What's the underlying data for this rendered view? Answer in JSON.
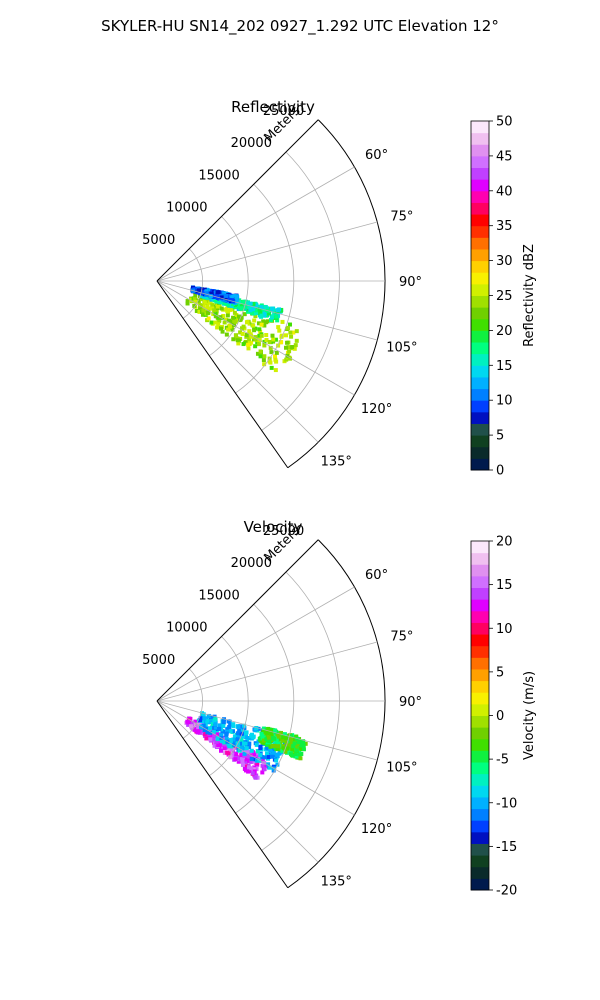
{
  "figure_title": "SKYLER-HU  SN14_202  0927_1.292 UTC Elevation 12°",
  "chart_data": [
    {
      "type": "polar-sector-radar",
      "title": "Reflectivity",
      "radial_label": "Meters",
      "rlim": [
        0,
        25000
      ],
      "r_ticks": [
        5000,
        10000,
        15000,
        20000,
        25000
      ],
      "r_tick_labels": [
        "5000",
        "10000",
        "15000",
        "20000",
        "25000"
      ],
      "theta_range_deg": [
        45,
        145
      ],
      "theta_ticks": [
        60,
        75,
        90,
        105,
        120,
        135
      ],
      "theta_tick_labels": [
        "60°",
        "75°",
        "90°",
        "105°",
        "120°",
        "135°"
      ],
      "grid": true,
      "colorbar": {
        "label": "Reflectivity dBZ",
        "vmin": 0,
        "vmax": 50,
        "ticks": [
          0,
          5,
          10,
          15,
          20,
          25,
          30,
          35,
          40,
          45,
          50
        ],
        "tick_labels": [
          "0",
          "5",
          "10",
          "15",
          "20",
          "25",
          "30",
          "35",
          "40",
          "45",
          "50"
        ],
        "colors": [
          "#001a4d",
          "#0a2a2a",
          "#104020",
          "#20504a",
          "#0010c0",
          "#0040ff",
          "#0080ff",
          "#00b0ff",
          "#00d8f0",
          "#00f0c0",
          "#00ff80",
          "#10f040",
          "#40e000",
          "#70d000",
          "#a0e000",
          "#d0f000",
          "#f8f000",
          "#ffd000",
          "#ffa000",
          "#ff7000",
          "#ff3000",
          "#ff0000",
          "#ff0060",
          "#ff00b0",
          "#e000ff",
          "#c040ff",
          "#d070ff",
          "#e090f0",
          "#f0c0f0",
          "#fbe8fb"
        ]
      },
      "echo_regions": [
        {
          "theta": [
            108,
            128
          ],
          "r": [
            4000,
            17000
          ],
          "value": 24
        },
        {
          "theta": [
            103,
            109
          ],
          "r": [
            5000,
            14000
          ],
          "value": 16
        },
        {
          "theta": [
            100,
            106
          ],
          "r": [
            4000,
            9000
          ],
          "value": 10
        }
      ]
    },
    {
      "type": "polar-sector-radar",
      "title": "Velocity",
      "radial_label": "Meters",
      "rlim": [
        0,
        25000
      ],
      "r_ticks": [
        5000,
        10000,
        15000,
        20000,
        25000
      ],
      "r_tick_labels": [
        "5000",
        "10000",
        "15000",
        "20000",
        "25000"
      ],
      "theta_range_deg": [
        45,
        145
      ],
      "theta_ticks": [
        60,
        75,
        90,
        105,
        120,
        135
      ],
      "theta_tick_labels": [
        "60°",
        "75°",
        "90°",
        "105°",
        "120°",
        "135°"
      ],
      "grid": true,
      "colorbar": {
        "label": "Velocity (m/s)",
        "vmin": -20,
        "vmax": 20,
        "ticks": [
          -20,
          -15,
          -10,
          -5,
          0,
          5,
          10,
          15,
          20
        ],
        "tick_labels": [
          "-20",
          "-15",
          "-10",
          "-5",
          "0",
          "5",
          "10",
          "15",
          "20"
        ],
        "colors": [
          "#001a4d",
          "#0a2a2a",
          "#104020",
          "#20504a",
          "#0010c0",
          "#0040ff",
          "#0080ff",
          "#00b0ff",
          "#00d8f0",
          "#00f0c0",
          "#00ff80",
          "#10f040",
          "#40e000",
          "#70d000",
          "#a0e000",
          "#d0f000",
          "#f8f000",
          "#ffd000",
          "#ffa000",
          "#ff7000",
          "#ff3000",
          "#ff0000",
          "#ff0060",
          "#ff00b0",
          "#e000ff",
          "#c040ff",
          "#d070ff",
          "#e090f0",
          "#f0c0f0",
          "#fbe8fb"
        ]
      },
      "echo_regions": [
        {
          "theta": [
            118,
            128
          ],
          "r": [
            4000,
            14000
          ],
          "value": 14
        },
        {
          "theta": [
            105,
            122
          ],
          "r": [
            5000,
            15000
          ],
          "value": -10
        },
        {
          "theta": [
            104,
            112
          ],
          "r": [
            12000,
            17000
          ],
          "value": -4
        }
      ]
    }
  ]
}
